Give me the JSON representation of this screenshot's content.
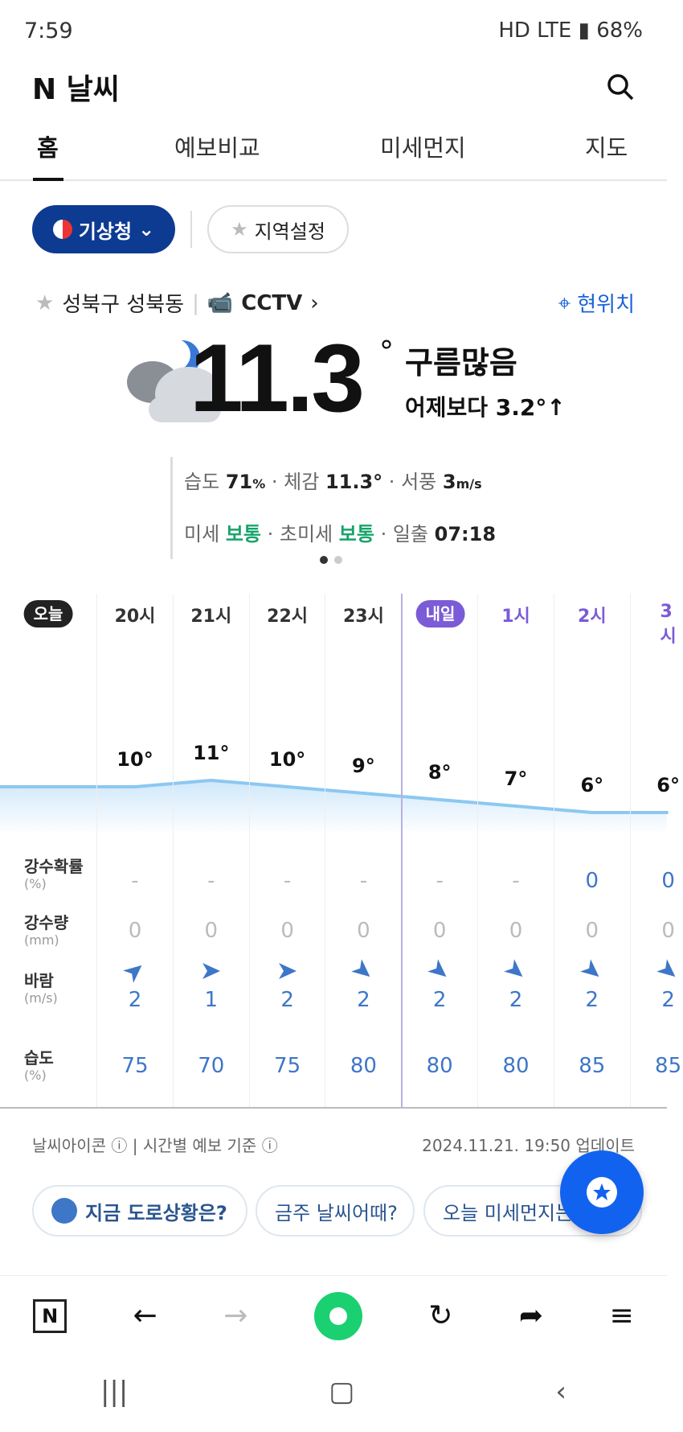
{
  "status_bar": {
    "time": "7:59",
    "right": "HD LTE ▮ 68%"
  },
  "header": {
    "brand": "N 날씨",
    "search_icon": "search-icon"
  },
  "tabs": [
    {
      "label": "홈",
      "active": true
    },
    {
      "label": "예보비교"
    },
    {
      "label": "미세먼지"
    },
    {
      "label": "지도"
    }
  ],
  "chips": {
    "source": "기상청",
    "region": "지역설정"
  },
  "location": {
    "name": "성북구 성북동",
    "cctv": "CCTV",
    "current": "현위치"
  },
  "current": {
    "temp": "11.3",
    "deg": "°",
    "condition": "구름많음",
    "compare": "어제보다 3.2°↑"
  },
  "details": {
    "humidity_label": "습도",
    "humidity": "71",
    "humidity_unit": "%",
    "feels_label": "체감",
    "feels": "11.3°",
    "wind_label": "서풍",
    "wind": "3",
    "wind_unit": "m/s",
    "dust_label": "미세",
    "dust": "보통",
    "ultra_label": "초미세",
    "ultra": "보통",
    "sunrise_label": "일출",
    "sunrise": "07:18"
  },
  "timeline": {
    "today": "오늘",
    "tomorrow": "내일",
    "hours": [
      "20시",
      "21시",
      "22시",
      "23시",
      "",
      "1시",
      "2시",
      "3시"
    ],
    "temps": [
      10,
      11,
      10,
      9,
      8,
      7,
      6,
      6
    ],
    "labels": {
      "pop": "강수확률",
      "pop_unit": "(%)",
      "rain": "강수량",
      "rain_unit": "(mm)",
      "wind": "바람",
      "wind_unit": "(m/s)",
      "hum": "습도",
      "hum_unit": "(%)"
    },
    "pop": [
      "-",
      "-",
      "-",
      "-",
      "-",
      "-",
      "0",
      "0"
    ],
    "rain": [
      "0",
      "0",
      "0",
      "0",
      "0",
      "0",
      "0",
      "0"
    ],
    "wind": [
      "2",
      "1",
      "2",
      "2",
      "2",
      "2",
      "2",
      "2"
    ],
    "hum": [
      "75",
      "70",
      "75",
      "80",
      "80",
      "80",
      "85",
      "85"
    ],
    "colors": {
      "line": "#8cc8f0",
      "tomorrow": "#7b5bd6"
    }
  },
  "footer": {
    "icon_info": "날씨아이콘",
    "forecast_info": "시간별 예보 기준",
    "updated": "2024.11.21. 19:50 업데이트"
  },
  "pills": [
    "지금 도로상황은?",
    "금주 날씨어때?",
    "오늘 미세먼지는"
  ]
}
